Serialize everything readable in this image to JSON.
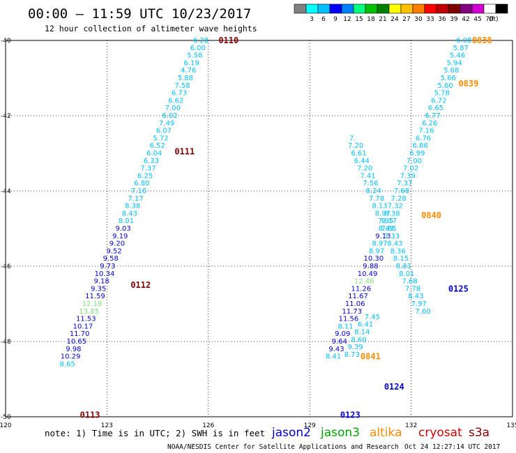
{
  "header": {
    "title": "00:00 – 11:59 UTC 10/23/2017",
    "subtitle": "12 hour collection of altimeter wave heights"
  },
  "legend": {
    "colors": [
      "#808080",
      "#00ffff",
      "#00bfff",
      "#0000ff",
      "#0080ff",
      "#00ff80",
      "#00c000",
      "#008000",
      "#ffff00",
      "#ffc000",
      "#ff8000",
      "#ff0000",
      "#c00000",
      "#800000",
      "#800080",
      "#d000d0",
      "#ffffff",
      "#000000"
    ],
    "labels": [
      "3",
      "6",
      "9",
      "12",
      "15",
      "18",
      "21",
      "24",
      "27",
      "30",
      "33",
      "36",
      "39",
      "42",
      "45",
      "70"
    ],
    "unit": "(ft)"
  },
  "axes": {
    "x_ticks": [
      {
        "v": 120,
        "label": "120"
      },
      {
        "v": 123,
        "label": "123"
      },
      {
        "v": 126,
        "label": "126"
      },
      {
        "v": 129,
        "label": "129"
      },
      {
        "v": 132,
        "label": "132"
      },
      {
        "v": 135,
        "label": "135"
      }
    ],
    "y_ticks": [
      {
        "v": -40,
        "label": "-40"
      },
      {
        "v": -42,
        "label": "-42"
      },
      {
        "v": -44,
        "label": "-44"
      },
      {
        "v": -46,
        "label": "-46"
      },
      {
        "v": -48,
        "label": "-48"
      },
      {
        "v": -50,
        "label": "-50"
      }
    ],
    "xlim": [
      120,
      135
    ],
    "ylim": [
      -50,
      -40
    ]
  },
  "footer": {
    "note": "note: 1) Time is in UTC; 2) SWH is in feet",
    "credit": "NOAA/NESDIS Center for Satellite Applications and Research",
    "timestamp": "Oct 24 12:27:14 UTC 2017",
    "satellites": [
      {
        "name": "jason2",
        "color": "#0000cc"
      },
      {
        "name": "jason3",
        "color": "#00a000"
      },
      {
        "name": "altika",
        "color": "#ff8c00"
      },
      {
        "name": "cryosat",
        "color": "#cc0000"
      },
      {
        "name": "s3a",
        "color": "#800000"
      }
    ]
  },
  "chart_data": {
    "type": "scatter",
    "xlim": [
      120,
      135
    ],
    "ylim": [
      -50,
      -40
    ],
    "time_labels": [
      {
        "text": "0110",
        "lon": 126.3,
        "lat": -40.0,
        "color": "#800000"
      },
      {
        "text": "0111",
        "lon": 125.0,
        "lat": -42.95,
        "color": "#800000"
      },
      {
        "text": "0112",
        "lon": 123.7,
        "lat": -46.5,
        "color": "#800000"
      },
      {
        "text": "0113",
        "lon": 122.2,
        "lat": -49.95,
        "color": "#800000"
      },
      {
        "text": "0838",
        "lon": 133.8,
        "lat": -40.0,
        "color": "#ff8c00"
      },
      {
        "text": "0839",
        "lon": 133.4,
        "lat": -41.15,
        "color": "#ff8c00"
      },
      {
        "text": "0840",
        "lon": 132.3,
        "lat": -44.65,
        "color": "#ff8c00"
      },
      {
        "text": "0841",
        "lon": 130.5,
        "lat": -48.4,
        "color": "#ff8c00"
      },
      {
        "text": "0123",
        "lon": 129.9,
        "lat": -49.95,
        "color": "#0000cc"
      },
      {
        "text": "0124",
        "lon": 131.2,
        "lat": -49.2,
        "color": "#0000cc"
      },
      {
        "text": "0125",
        "lon": 133.1,
        "lat": -46.6,
        "color": "#0000cc"
      }
    ],
    "tracks": [
      {
        "points": [
          {
            "lon": 125.78,
            "lat": -40.0,
            "v": "6.28",
            "c": "#00bfff"
          },
          {
            "lon": 125.69,
            "lat": -40.2,
            "v": "6.00",
            "c": "#00bfff"
          },
          {
            "lon": 125.6,
            "lat": -40.4,
            "v": "5.58",
            "c": "#00bfff"
          },
          {
            "lon": 125.5,
            "lat": -40.6,
            "v": "6.19",
            "c": "#00bfff"
          },
          {
            "lon": 125.41,
            "lat": -40.8,
            "v": "4.76",
            "c": "#00bfff"
          },
          {
            "lon": 125.32,
            "lat": -41.0,
            "v": "5.88",
            "c": "#00bfff"
          },
          {
            "lon": 125.23,
            "lat": -41.2,
            "v": "7.58",
            "c": "#00bfff"
          },
          {
            "lon": 125.14,
            "lat": -41.4,
            "v": "6.73",
            "c": "#00bfff"
          },
          {
            "lon": 125.04,
            "lat": -41.6,
            "v": "6.62",
            "c": "#00bfff"
          },
          {
            "lon": 124.95,
            "lat": -41.8,
            "v": "7.00",
            "c": "#00bfff"
          },
          {
            "lon": 124.86,
            "lat": -42.0,
            "v": "6.02",
            "c": "#00bfff"
          },
          {
            "lon": 124.77,
            "lat": -42.2,
            "v": "7.49",
            "c": "#00bfff"
          },
          {
            "lon": 124.68,
            "lat": -42.4,
            "v": "6.07",
            "c": "#00bfff"
          },
          {
            "lon": 124.59,
            "lat": -42.6,
            "v": "5.72",
            "c": "#00bfff"
          },
          {
            "lon": 124.49,
            "lat": -42.8,
            "v": "6.52",
            "c": "#00bfff"
          },
          {
            "lon": 124.4,
            "lat": -43.0,
            "v": "6.04",
            "c": "#00bfff"
          },
          {
            "lon": 124.31,
            "lat": -43.2,
            "v": "6.33",
            "c": "#00bfff"
          },
          {
            "lon": 124.22,
            "lat": -43.4,
            "v": "7.37",
            "c": "#00bfff"
          },
          {
            "lon": 124.13,
            "lat": -43.6,
            "v": "6.25",
            "c": "#00bfff"
          },
          {
            "lon": 124.03,
            "lat": -43.8,
            "v": "6.80",
            "c": "#00bfff"
          },
          {
            "lon": 123.94,
            "lat": -44.0,
            "v": "7.16",
            "c": "#00bfff"
          },
          {
            "lon": 123.85,
            "lat": -44.2,
            "v": "7.17",
            "c": "#00bfff"
          },
          {
            "lon": 123.76,
            "lat": -44.4,
            "v": "8.38",
            "c": "#00bfff"
          },
          {
            "lon": 123.67,
            "lat": -44.6,
            "v": "8.43",
            "c": "#00bfff"
          },
          {
            "lon": 123.57,
            "lat": -44.8,
            "v": "8.01",
            "c": "#00bfff"
          },
          {
            "lon": 123.48,
            "lat": -45.0,
            "v": "9.03",
            "c": "#0000cc"
          },
          {
            "lon": 123.39,
            "lat": -45.2,
            "v": "9.19",
            "c": "#0000cc"
          },
          {
            "lon": 123.3,
            "lat": -45.4,
            "v": "9.20",
            "c": "#0000cc"
          },
          {
            "lon": 123.21,
            "lat": -45.6,
            "v": "9.52",
            "c": "#0000cc"
          },
          {
            "lon": 123.11,
            "lat": -45.8,
            "v": "9.58",
            "c": "#0000cc"
          },
          {
            "lon": 123.02,
            "lat": -46.0,
            "v": "9.73",
            "c": "#0000cc"
          },
          {
            "lon": 122.93,
            "lat": -46.2,
            "v": "10.34",
            "c": "#0000cc"
          },
          {
            "lon": 122.84,
            "lat": -46.4,
            "v": "9.18",
            "c": "#0000cc"
          },
          {
            "lon": 122.75,
            "lat": -46.6,
            "v": "9.35",
            "c": "#0000cc"
          },
          {
            "lon": 122.65,
            "lat": -46.8,
            "v": "11.59",
            "c": "#0000cc"
          },
          {
            "lon": 122.56,
            "lat": -47.0,
            "v": "12.18",
            "c": "#80e080"
          },
          {
            "lon": 122.47,
            "lat": -47.2,
            "v": "13.85",
            "c": "#80e080"
          },
          {
            "lon": 122.38,
            "lat": -47.4,
            "v": "11.53",
            "c": "#0000cc"
          },
          {
            "lon": 122.29,
            "lat": -47.6,
            "v": "10.17",
            "c": "#0000cc"
          },
          {
            "lon": 122.19,
            "lat": -47.8,
            "v": "11.70",
            "c": "#0000cc"
          },
          {
            "lon": 122.1,
            "lat": -48.0,
            "v": "10.65",
            "c": "#0000cc"
          },
          {
            "lon": 122.01,
            "lat": -48.2,
            "v": "9.98",
            "c": "#0000cc"
          },
          {
            "lon": 121.92,
            "lat": -48.4,
            "v": "10.29",
            "c": "#0000cc"
          },
          {
            "lon": 121.83,
            "lat": -48.6,
            "v": "8.65",
            "c": "#00bfff"
          }
        ]
      },
      {
        "points": [
          {
            "lon": 133.56,
            "lat": -40.0,
            "v": "6.08",
            "c": "#00bfff"
          },
          {
            "lon": 133.47,
            "lat": -40.2,
            "v": "5.87",
            "c": "#00bfff"
          },
          {
            "lon": 133.37,
            "lat": -40.4,
            "v": "5.46",
            "c": "#00bfff"
          },
          {
            "lon": 133.28,
            "lat": -40.6,
            "v": "5.94",
            "c": "#00bfff"
          },
          {
            "lon": 133.19,
            "lat": -40.8,
            "v": "5.68",
            "c": "#00bfff"
          },
          {
            "lon": 133.1,
            "lat": -41.0,
            "v": "5.66",
            "c": "#00bfff"
          },
          {
            "lon": 133.01,
            "lat": -41.2,
            "v": "5.60",
            "c": "#00bfff"
          },
          {
            "lon": 132.91,
            "lat": -41.4,
            "v": "5.78",
            "c": "#00bfff"
          },
          {
            "lon": 132.82,
            "lat": -41.6,
            "v": "6.72",
            "c": "#00bfff"
          },
          {
            "lon": 132.73,
            "lat": -41.8,
            "v": "6.65",
            "c": "#00bfff"
          },
          {
            "lon": 132.64,
            "lat": -42.0,
            "v": "6.77",
            "c": "#00bfff"
          },
          {
            "lon": 132.55,
            "lat": -42.2,
            "v": "6.26",
            "c": "#00bfff"
          },
          {
            "lon": 132.45,
            "lat": -42.4,
            "v": "7.16",
            "c": "#00bfff"
          },
          {
            "lon": 132.36,
            "lat": -42.6,
            "v": "6.76",
            "c": "#00bfff"
          },
          {
            "lon": 132.27,
            "lat": -42.8,
            "v": "6.86",
            "c": "#00bfff"
          },
          {
            "lon": 132.18,
            "lat": -43.0,
            "v": "6.99",
            "c": "#00bfff"
          },
          {
            "lon": 132.09,
            "lat": -43.2,
            "v": "7.00",
            "c": "#00bfff"
          },
          {
            "lon": 131.99,
            "lat": -43.4,
            "v": "7.02",
            "c": "#00bfff"
          },
          {
            "lon": 131.9,
            "lat": -43.6,
            "v": "7.39",
            "c": "#00bfff"
          },
          {
            "lon": 131.81,
            "lat": -43.8,
            "v": "7.37",
            "c": "#00bfff"
          },
          {
            "lon": 131.72,
            "lat": -44.0,
            "v": "7.68",
            "c": "#00bfff"
          },
          {
            "lon": 131.63,
            "lat": -44.2,
            "v": "7.28",
            "c": "#00bfff"
          },
          {
            "lon": 131.53,
            "lat": -44.4,
            "v": "7.32",
            "c": "#00bfff"
          },
          {
            "lon": 131.44,
            "lat": -44.6,
            "v": "8.38",
            "c": "#00bfff"
          },
          {
            "lon": 131.35,
            "lat": -44.8,
            "v": "8.17",
            "c": "#00bfff"
          },
          {
            "lon": 131.26,
            "lat": -45.0,
            "v": "8.49",
            "c": "#00bfff"
          },
          {
            "lon": 131.17,
            "lat": -45.2,
            "v": "9.13",
            "c": "#0000cc"
          },
          {
            "lon": 131.07,
            "lat": -45.4,
            "v": "8.97",
            "c": "#00bfff"
          },
          {
            "lon": 130.98,
            "lat": -45.6,
            "v": "8.97",
            "c": "#00bfff"
          },
          {
            "lon": 130.89,
            "lat": -45.8,
            "v": "10.30",
            "c": "#0000cc"
          },
          {
            "lon": 130.8,
            "lat": -46.0,
            "v": "9.88",
            "c": "#0000cc"
          },
          {
            "lon": 130.71,
            "lat": -46.2,
            "v": "10.49",
            "c": "#0000cc"
          },
          {
            "lon": 130.61,
            "lat": -46.4,
            "v": "12.46",
            "c": "#80e080"
          },
          {
            "lon": 130.52,
            "lat": -46.6,
            "v": "11.26",
            "c": "#0000cc"
          },
          {
            "lon": 130.43,
            "lat": -46.8,
            "v": "11.67",
            "c": "#0000cc"
          },
          {
            "lon": 130.34,
            "lat": -47.0,
            "v": "11.06",
            "c": "#0000cc"
          },
          {
            "lon": 130.25,
            "lat": -47.2,
            "v": "11.73",
            "c": "#0000cc"
          },
          {
            "lon": 130.15,
            "lat": -47.4,
            "v": "11.56",
            "c": "#0000cc"
          },
          {
            "lon": 130.06,
            "lat": -47.6,
            "v": "8.11",
            "c": "#00bfff"
          },
          {
            "lon": 129.97,
            "lat": -47.8,
            "v": "9.09",
            "c": "#0000cc"
          },
          {
            "lon": 129.88,
            "lat": -48.0,
            "v": "9.64",
            "c": "#0000cc"
          },
          {
            "lon": 129.79,
            "lat": -48.2,
            "v": "9.43",
            "c": "#0000cc"
          },
          {
            "lon": 129.7,
            "lat": -48.4,
            "v": "8.41",
            "c": "#00bfff"
          }
        ]
      },
      {
        "points": [
          {
            "lon": 132.35,
            "lat": -47.2,
            "v": "7.60",
            "c": "#00bfff"
          },
          {
            "lon": 132.23,
            "lat": -47.0,
            "v": "7.97",
            "c": "#00bfff"
          },
          {
            "lon": 132.14,
            "lat": -46.8,
            "v": "8.43",
            "c": "#00bfff"
          },
          {
            "lon": 132.05,
            "lat": -46.6,
            "v": "7.78",
            "c": "#00bfff"
          },
          {
            "lon": 131.96,
            "lat": -46.4,
            "v": "7.68",
            "c": "#00bfff"
          },
          {
            "lon": 131.87,
            "lat": -46.2,
            "v": "8.01",
            "c": "#00bfff"
          },
          {
            "lon": 131.78,
            "lat": -46.0,
            "v": "8.81",
            "c": "#00bfff"
          },
          {
            "lon": 131.7,
            "lat": -45.8,
            "v": "8.15",
            "c": "#00bfff"
          },
          {
            "lon": 131.61,
            "lat": -45.6,
            "v": "8.36",
            "c": "#00bfff"
          },
          {
            "lon": 131.52,
            "lat": -45.4,
            "v": "8.43",
            "c": "#00bfff"
          },
          {
            "lon": 131.43,
            "lat": -45.2,
            "v": "7.33",
            "c": "#00bfff"
          },
          {
            "lon": 131.34,
            "lat": -45.0,
            "v": "7.65",
            "c": "#00bfff"
          },
          {
            "lon": 131.25,
            "lat": -44.8,
            "v": "7.95",
            "c": "#00bfff"
          },
          {
            "lon": 131.16,
            "lat": -44.6,
            "v": "8.97",
            "c": "#00bfff"
          },
          {
            "lon": 131.07,
            "lat": -44.4,
            "v": "8.13",
            "c": "#00bfff"
          },
          {
            "lon": 130.98,
            "lat": -44.2,
            "v": "7.78",
            "c": "#00bfff"
          },
          {
            "lon": 130.89,
            "lat": -44.0,
            "v": "8.24",
            "c": "#00bfff"
          },
          {
            "lon": 130.8,
            "lat": -43.8,
            "v": "7.56",
            "c": "#00bfff"
          },
          {
            "lon": 130.72,
            "lat": -43.6,
            "v": "7.41",
            "c": "#00bfff"
          },
          {
            "lon": 130.63,
            "lat": -43.4,
            "v": "7.20",
            "c": "#00bfff"
          },
          {
            "lon": 130.54,
            "lat": -43.2,
            "v": "6.44",
            "c": "#00bfff"
          },
          {
            "lon": 130.45,
            "lat": -43.0,
            "v": "6.61",
            "c": "#00bfff"
          },
          {
            "lon": 130.36,
            "lat": -42.8,
            "v": "7.20",
            "c": "#00bfff"
          },
          {
            "lon": 130.27,
            "lat": -42.6,
            "v": "7.",
            "c": "#00bfff"
          }
        ]
      },
      {
        "points": [
          {
            "lon": 130.85,
            "lat": -47.35,
            "v": "7.45",
            "c": "#00bfff"
          },
          {
            "lon": 130.65,
            "lat": -47.55,
            "v": "6.41",
            "c": "#00bfff"
          },
          {
            "lon": 130.55,
            "lat": -47.75,
            "v": "8.14",
            "c": "#00bfff"
          },
          {
            "lon": 130.45,
            "lat": -47.95,
            "v": "8.60",
            "c": "#00bfff"
          },
          {
            "lon": 130.35,
            "lat": -48.15,
            "v": "9.39",
            "c": "#00bfff"
          },
          {
            "lon": 130.25,
            "lat": -48.35,
            "v": "8.73",
            "c": "#00bfff"
          }
        ]
      }
    ]
  }
}
